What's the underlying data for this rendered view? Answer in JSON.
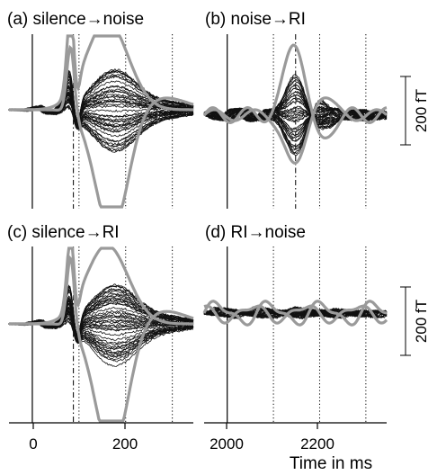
{
  "figure": {
    "xlabel": "Time in ms",
    "scalebar_label": "200 fT"
  },
  "chart_data": [
    {
      "type": "line",
      "panel_label": "(a) silence→noise",
      "xlim": [
        -50,
        345
      ],
      "xticks": [
        0,
        200
      ],
      "tick_labels": [
        "0",
        "200"
      ],
      "vlines": [
        {
          "x": 0,
          "style": "solid"
        },
        {
          "x": 88,
          "style": "dashdot"
        },
        {
          "x": 100,
          "style": "dotted"
        },
        {
          "x": 200,
          "style": "dotted"
        },
        {
          "x": 300,
          "style": "dotted"
        }
      ],
      "highlight_amplitudes_fT": [
        -360,
        260
      ],
      "pattern": "sn"
    },
    {
      "type": "line",
      "panel_label": "(b) noise→RI",
      "xlim": [
        1950,
        2345
      ],
      "xticks": [
        2000,
        2200
      ],
      "tick_labels": [
        "",
        ""
      ],
      "vlines": [
        {
          "x": 2000,
          "style": "solid"
        },
        {
          "x": 2100,
          "style": "dotted"
        },
        {
          "x": 2148,
          "style": "dashdot"
        },
        {
          "x": 2200,
          "style": "dotted"
        },
        {
          "x": 2300,
          "style": "dotted"
        }
      ],
      "highlight_amplitudes_fT": [
        220,
        -160
      ],
      "pattern": "nr"
    },
    {
      "type": "line",
      "panel_label": "(c) silence→RI",
      "xlim": [
        -50,
        345
      ],
      "xticks": [
        0,
        200
      ],
      "tick_labels": [
        "",
        ""
      ],
      "vlines": [
        {
          "x": 0,
          "style": "solid"
        },
        {
          "x": 88,
          "style": "dashdot"
        },
        {
          "x": 100,
          "style": "dotted"
        },
        {
          "x": 200,
          "style": "dotted"
        },
        {
          "x": 300,
          "style": "dotted"
        }
      ],
      "highlight_amplitudes_fT": [
        -380,
        230
      ],
      "pattern": "sr"
    },
    {
      "type": "line",
      "panel_label": "(d) RI→noise",
      "xlim": [
        1950,
        2345
      ],
      "xticks": [
        2000,
        2200
      ],
      "tick_labels": [
        "2000",
        "2200"
      ],
      "vlines": [
        {
          "x": 2000,
          "style": "solid"
        },
        {
          "x": 2100,
          "style": "dotted"
        },
        {
          "x": 2200,
          "style": "dotted"
        },
        {
          "x": 2300,
          "style": "dotted"
        }
      ],
      "highlight_amplitudes_fT": [
        -40,
        30
      ],
      "pattern": "rn"
    }
  ]
}
